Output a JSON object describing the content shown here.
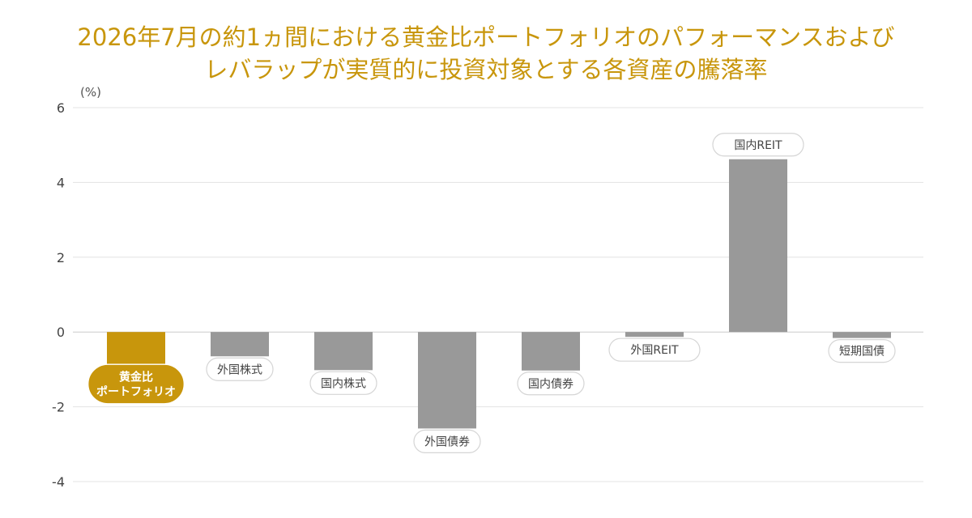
{
  "title_lines": [
    "2026年7月の約1ヵ間における黄金比ポートフォリオのパフォーマンスおよび",
    "レバラップが実質的に投資対象とする各資産の騰落率"
  ],
  "colors": {
    "title": "#c8960c",
    "highlight": "#c8960c",
    "bar": "#999999",
    "grid": "#e3e3e3",
    "axis": "#cccccc"
  },
  "chart_data": {
    "type": "bar",
    "unit_label": "(%)",
    "ylim": [
      -4,
      6
    ],
    "yticks": [
      6,
      4,
      2,
      0,
      -2,
      -4
    ],
    "grid": true,
    "categories": [
      "黄金比ポートフォリオ",
      "外国株式",
      "国内株式",
      "外国債券",
      "国内債券",
      "外国REIT",
      "国内REIT",
      "短期国債"
    ],
    "category_label_lines": [
      [
        "黄金比",
        "ポートフォリオ"
      ],
      [
        "外国株式"
      ],
      [
        "国内株式"
      ],
      [
        "外国債券"
      ],
      [
        "国内債券"
      ],
      [
        "外国REIT"
      ],
      [
        "国内REIT"
      ],
      [
        "短期国債"
      ]
    ],
    "values": [
      -0.85,
      -0.65,
      -1.02,
      -2.58,
      -1.03,
      -0.13,
      4.62,
      -0.16
    ],
    "highlight_index": 0
  }
}
